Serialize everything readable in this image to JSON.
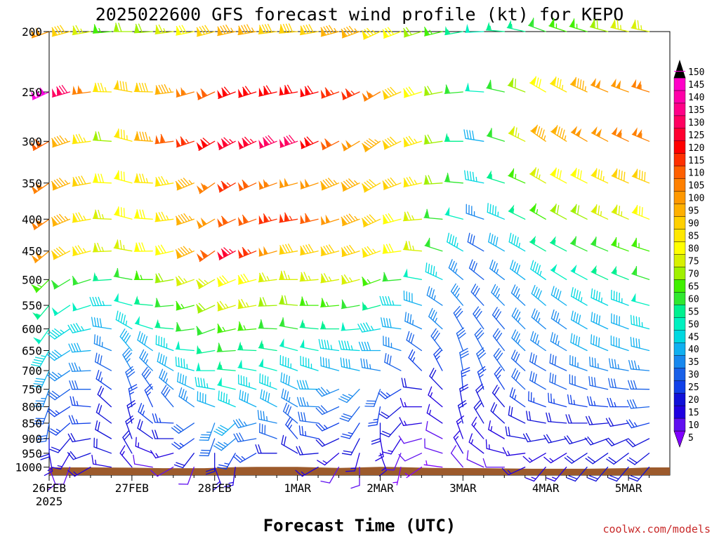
{
  "chart_data": {
    "type": "wind-barb-time-height",
    "title": "2025022600 GFS forecast wind profile (kt) for KEPO",
    "xlabel": "Forecast Time (UTC)",
    "credit": "coolwx.com/models",
    "x_ticks": [
      {
        "label": "26FEB",
        "sub": "2025",
        "hour": 0
      },
      {
        "label": "27FEB",
        "sub": "",
        "hour": 24
      },
      {
        "label": "28FEB",
        "sub": "",
        "hour": 48
      },
      {
        "label": "1MAR",
        "sub": "",
        "hour": 72
      },
      {
        "label": "2MAR",
        "sub": "",
        "hour": 96
      },
      {
        "label": "3MAR",
        "sub": "",
        "hour": 120
      },
      {
        "label": "4MAR",
        "sub": "",
        "hour": 144
      },
      {
        "label": "5MAR",
        "sub": "",
        "hour": 168
      }
    ],
    "x_range_hours": [
      0,
      180
    ],
    "y_axis": "pressure (mb)",
    "y_range": [
      1030,
      200
    ],
    "y_ticks": [
      200,
      250,
      300,
      350,
      400,
      450,
      500,
      550,
      600,
      650,
      700,
      750,
      800,
      850,
      900,
      950,
      1000
    ],
    "colorbar": {
      "labels": [
        5,
        10,
        15,
        20,
        25,
        30,
        35,
        40,
        45,
        50,
        55,
        60,
        65,
        70,
        75,
        80,
        85,
        90,
        95,
        100,
        105,
        110,
        115,
        120,
        125,
        130,
        135,
        140,
        145,
        150
      ],
      "colors": [
        "#8000ff",
        "#6010f0",
        "#2000e0",
        "#1010d8",
        "#1040e8",
        "#1860e8",
        "#1888ee",
        "#10b0f0",
        "#00d8e0",
        "#00f0c0",
        "#00f090",
        "#30e830",
        "#40f000",
        "#a0f000",
        "#d8f000",
        "#ffff00",
        "#ffe800",
        "#ffd000",
        "#ffb000",
        "#ff9800",
        "#ff8000",
        "#ff6000",
        "#ff3000",
        "#ff0000",
        "#ff0030",
        "#ff0060",
        "#ff0088",
        "#ff00a8",
        "#ff00c8",
        "#ff00e0"
      ],
      "overflow_color": "#000000"
    },
    "surface_pressure": [
      {
        "hour": 0,
        "p": 1001
      },
      {
        "hour": 12,
        "p": 1001
      },
      {
        "hour": 24,
        "p": 1002
      },
      {
        "hour": 33,
        "p": 1004
      },
      {
        "hour": 45,
        "p": 1004
      },
      {
        "hour": 54,
        "p": 1000
      },
      {
        "hour": 60,
        "p": 999
      },
      {
        "hour": 72,
        "p": 999
      },
      {
        "hour": 84,
        "p": 1003
      },
      {
        "hour": 96,
        "p": 999
      },
      {
        "hour": 102,
        "p": 1000
      },
      {
        "hour": 111,
        "p": 1003
      },
      {
        "hour": 126,
        "p": 1004
      },
      {
        "hour": 140,
        "p": 1006
      },
      {
        "hour": 156,
        "p": 1006
      },
      {
        "hour": 168,
        "p": 1004
      },
      {
        "hour": 174,
        "p": 1001
      },
      {
        "hour": 180,
        "p": 1001
      }
    ],
    "wind_model": {
      "levels": [
        200,
        250,
        300,
        350,
        400,
        450,
        500,
        550,
        600,
        650,
        700,
        750,
        800,
        850,
        900,
        950,
        1000
      ],
      "hour_step": 6,
      "speed_nodes": [
        {
          "hour": 0,
          "speeds": [
            100,
            150,
            110,
            105,
            105,
            100,
            65,
            55,
            50,
            45,
            40,
            35,
            30,
            30,
            20,
            15,
            10
          ]
        },
        {
          "hour": 18,
          "speeds": [
            65,
            85,
            70,
            80,
            75,
            75,
            55,
            45,
            40,
            35,
            30,
            25,
            20,
            20,
            20,
            20,
            15
          ]
        },
        {
          "hour": 36,
          "speeds": [
            75,
            95,
            110,
            85,
            85,
            80,
            70,
            60,
            55,
            45,
            40,
            35,
            30,
            25,
            20,
            15,
            10
          ]
        },
        {
          "hour": 54,
          "speeds": [
            95,
            120,
            125,
            115,
            110,
            125,
            80,
            75,
            65,
            60,
            55,
            50,
            45,
            40,
            35,
            25,
            15
          ]
        },
        {
          "hour": 72,
          "speeds": [
            90,
            120,
            130,
            100,
            115,
            90,
            75,
            70,
            60,
            50,
            45,
            40,
            35,
            30,
            25,
            20,
            15
          ]
        },
        {
          "hour": 90,
          "speeds": [
            95,
            115,
            100,
            95,
            95,
            90,
            75,
            60,
            50,
            45,
            40,
            35,
            30,
            25,
            20,
            15,
            10
          ]
        },
        {
          "hour": 108,
          "speeds": [
            70,
            80,
            85,
            85,
            75,
            75,
            50,
            40,
            35,
            30,
            25,
            20,
            15,
            15,
            10,
            10,
            5
          ]
        },
        {
          "hour": 126,
          "speeds": [
            50,
            50,
            40,
            45,
            35,
            30,
            30,
            30,
            30,
            30,
            30,
            25,
            20,
            20,
            15,
            15,
            10
          ]
        },
        {
          "hour": 144,
          "speeds": [
            60,
            80,
            95,
            75,
            65,
            55,
            45,
            40,
            35,
            35,
            30,
            30,
            25,
            20,
            20,
            15,
            15
          ]
        },
        {
          "hour": 162,
          "speeds": [
            70,
            100,
            100,
            85,
            75,
            60,
            55,
            45,
            40,
            40,
            35,
            30,
            25,
            20,
            20,
            20,
            20
          ]
        },
        {
          "hour": 180,
          "speeds": [
            80,
            105,
            110,
            95,
            80,
            70,
            60,
            50,
            45,
            40,
            35,
            30,
            30,
            25,
            20,
            20,
            20
          ]
        }
      ],
      "direction_nodes": [
        {
          "hour": 0,
          "dirs": [
            250,
            245,
            240,
            235,
            235,
            230,
            225,
            220,
            215,
            210,
            205,
            200,
            200,
            190,
            180,
            170,
            160
          ]
        },
        {
          "hour": 24,
          "dirs": [
            270,
            280,
            285,
            285,
            285,
            280,
            280,
            285,
            300,
            320,
            330,
            340,
            350,
            345,
            340,
            330,
            320
          ]
        },
        {
          "hour": 48,
          "dirs": [
            255,
            245,
            240,
            235,
            240,
            235,
            240,
            245,
            250,
            260,
            270,
            280,
            290,
            200,
            200,
            180,
            160
          ]
        },
        {
          "hour": 72,
          "dirs": [
            265,
            260,
            250,
            255,
            260,
            260,
            270,
            275,
            280,
            285,
            290,
            295,
            300,
            310,
            320,
            300,
            270
          ]
        },
        {
          "hour": 96,
          "dirs": [
            245,
            240,
            235,
            240,
            245,
            250,
            250,
            255,
            260,
            270,
            280,
            200,
            190,
            180,
            170,
            160,
            150
          ]
        },
        {
          "hour": 120,
          "dirs": [
            260,
            265,
            270,
            275,
            285,
            300,
            310,
            320,
            330,
            340,
            350,
            355,
            350,
            345,
            340,
            330,
            320
          ]
        },
        {
          "hour": 144,
          "dirs": [
            290,
            300,
            305,
            300,
            300,
            300,
            305,
            310,
            310,
            305,
            300,
            300,
            290,
            280,
            260,
            240,
            220
          ]
        },
        {
          "hour": 180,
          "dirs": [
            280,
            285,
            290,
            290,
            290,
            285,
            285,
            280,
            280,
            280,
            270,
            265,
            260,
            250,
            240,
            230,
            220
          ]
        }
      ]
    }
  }
}
